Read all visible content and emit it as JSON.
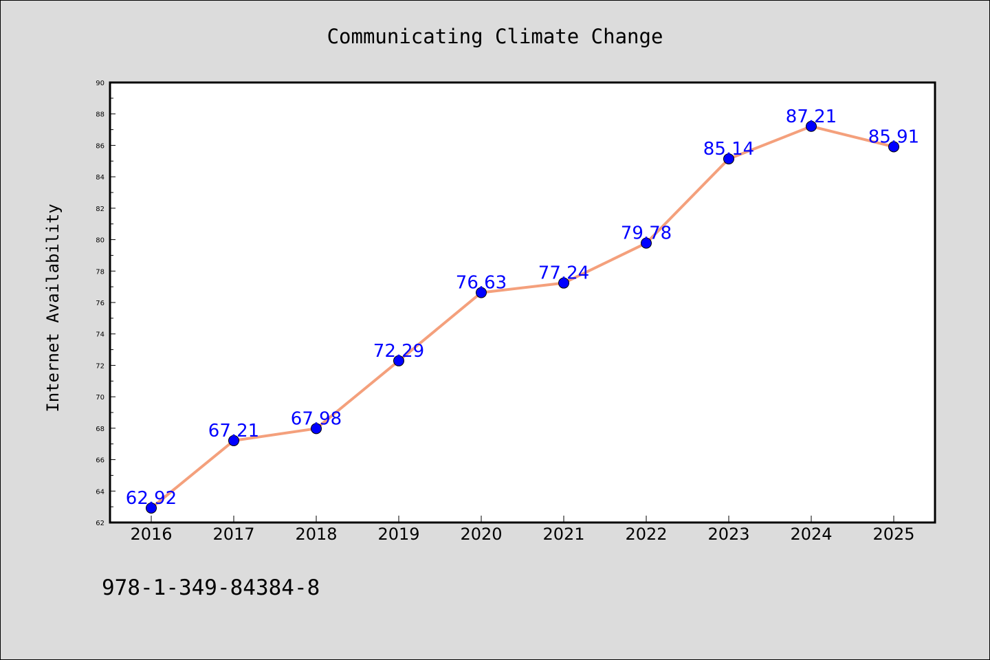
{
  "chart_data": {
    "type": "line",
    "title": "Communicating Climate Change",
    "xlabel": "",
    "ylabel": "Internet Availability",
    "categories": [
      "2016",
      "2017",
      "2018",
      "2019",
      "2020",
      "2021",
      "2022",
      "2023",
      "2024",
      "2025"
    ],
    "series": [
      {
        "values": [
          62.92,
          67.21,
          67.98,
          72.29,
          76.63,
          77.24,
          79.78,
          85.14,
          87.21,
          85.91
        ],
        "labels": [
          "62.92",
          "67.21",
          "67.98",
          "72.29",
          "76.63",
          "77.24",
          "79.78",
          "85.14",
          "87.21",
          "85.91"
        ],
        "line_color": "#f4a07c",
        "marker_color": "#0000ff",
        "label_color": "#0000ff"
      }
    ],
    "ylim": [
      62,
      90
    ],
    "yticks": [
      "62",
      "64",
      "66",
      "68",
      "70",
      "72",
      "74",
      "76",
      "78",
      "80",
      "82",
      "84",
      "86",
      "88",
      "90"
    ],
    "grid": false,
    "legend": "none"
  },
  "footnote": "978-1-349-84384-8",
  "colors": {
    "background": "#dcdcdc",
    "plot_background": "#ffffff"
  }
}
